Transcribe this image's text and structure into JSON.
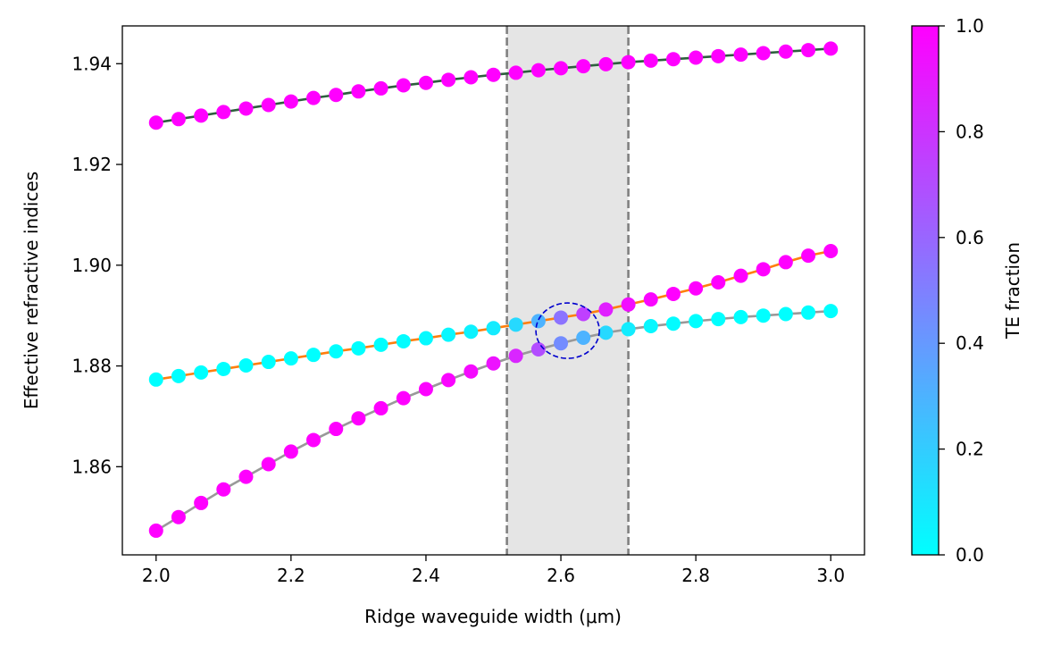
{
  "chart_data": {
    "type": "scatter",
    "xlabel": "Ridge waveguide width (μm)",
    "ylabel": "Effective refractive indices",
    "xlim": [
      1.95,
      3.05
    ],
    "ylim": [
      1.8425,
      1.9475
    ],
    "x_ticks": [
      2.0,
      2.2,
      2.4,
      2.6,
      2.8,
      3.0
    ],
    "x_tick_labels": [
      "2.0",
      "2.2",
      "2.4",
      "2.6",
      "2.8",
      "3.0"
    ],
    "y_ticks": [
      1.86,
      1.88,
      1.9,
      1.92,
      1.94
    ],
    "y_tick_labels": [
      "1.86",
      "1.88",
      "1.90",
      "1.92",
      "1.94"
    ],
    "grid": false,
    "x": [
      2.0,
      2.0333,
      2.0667,
      2.1,
      2.1333,
      2.1667,
      2.2,
      2.2333,
      2.2667,
      2.3,
      2.3333,
      2.3667,
      2.4,
      2.4333,
      2.4667,
      2.5,
      2.5333,
      2.5667,
      2.6,
      2.6333,
      2.6667,
      2.7,
      2.7333,
      2.7667,
      2.8,
      2.8333,
      2.8667,
      2.9,
      2.9333,
      2.9667,
      3.0
    ],
    "series": [
      {
        "line_color": "#2e5f3e",
        "values": [
          1.9283,
          1.929,
          1.9297,
          1.9304,
          1.9311,
          1.9318,
          1.9325,
          1.9332,
          1.9338,
          1.9345,
          1.9351,
          1.9357,
          1.9362,
          1.9368,
          1.9373,
          1.9378,
          1.9382,
          1.9387,
          1.9391,
          1.9395,
          1.9399,
          1.9403,
          1.9406,
          1.9409,
          1.9412,
          1.9415,
          1.9418,
          1.9421,
          1.9424,
          1.9427,
          1.943
        ],
        "te_fraction": [
          1,
          1,
          1,
          1,
          1,
          1,
          1,
          1,
          1,
          1,
          1,
          1,
          1,
          1,
          1,
          1,
          1,
          1,
          1,
          1,
          1,
          1,
          1,
          1,
          1,
          1,
          1,
          1,
          1,
          1,
          1
        ]
      },
      {
        "line_color": "#ff7f0e",
        "values": [
          1.8773,
          1.878,
          1.8787,
          1.8794,
          1.8801,
          1.8808,
          1.8815,
          1.8822,
          1.8829,
          1.8835,
          1.8842,
          1.8849,
          1.8855,
          1.8862,
          1.8868,
          1.8875,
          1.8882,
          1.8889,
          1.8896,
          1.8903,
          1.8912,
          1.8922,
          1.8932,
          1.8943,
          1.8954,
          1.8966,
          1.8979,
          1.8992,
          1.9006,
          1.9019,
          1.9028
        ],
        "te_fraction": [
          0,
          0,
          0,
          0,
          0,
          0,
          0,
          0,
          0,
          0,
          0,
          0.01,
          0.02,
          0.03,
          0.05,
          0.08,
          0.15,
          0.3,
          0.55,
          0.75,
          0.88,
          0.95,
          0.98,
          1,
          1,
          1,
          1,
          1,
          1,
          1,
          1
        ]
      },
      {
        "line_color": "#999999",
        "values": [
          1.8473,
          1.85,
          1.8528,
          1.8555,
          1.858,
          1.8605,
          1.863,
          1.8653,
          1.8675,
          1.8696,
          1.8716,
          1.8736,
          1.8754,
          1.8772,
          1.8789,
          1.8805,
          1.882,
          1.8833,
          1.8845,
          1.8856,
          1.8866,
          1.8873,
          1.8879,
          1.8884,
          1.8889,
          1.8893,
          1.8897,
          1.89,
          1.8903,
          1.8906,
          1.8909
        ],
        "te_fraction": [
          1,
          1,
          1,
          1,
          1,
          1,
          1,
          1,
          1,
          1,
          1,
          1,
          0.99,
          0.98,
          0.96,
          0.93,
          0.85,
          0.7,
          0.45,
          0.3,
          0.15,
          0.07,
          0.03,
          0.01,
          0,
          0,
          0,
          0,
          0,
          0,
          0
        ]
      }
    ],
    "shaded_region": {
      "x_range": [
        2.52,
        2.7
      ],
      "fill": "#e5e5e5",
      "edge_color": "#808080",
      "edge_style": "dashed"
    },
    "annotation_circle": {
      "x_center": 2.61,
      "y_center": 1.887,
      "x_radius": 0.047,
      "y_radius": 0.0055,
      "color": "#0000cd",
      "style": "dashed"
    },
    "colorbar": {
      "label": "TE fraction",
      "range": [
        0.0,
        1.0
      ],
      "colormap": "cool",
      "color_low": "#00ffff",
      "color_high": "#ff00ff",
      "ticks": [
        0.0,
        0.2,
        0.4,
        0.6,
        0.8,
        1.0
      ],
      "tick_labels": [
        "0.0",
        "0.2",
        "0.4",
        "0.6",
        "0.8",
        "1.0"
      ]
    }
  }
}
